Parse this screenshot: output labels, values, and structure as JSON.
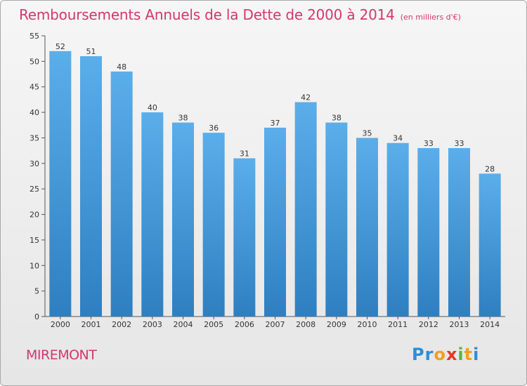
{
  "header": {
    "title": "Remboursements Annuels de la Dette de 2000 à 2014",
    "subtitle": "(en milliers d'€)"
  },
  "footer": {
    "commune": "MIREMONT",
    "logo_text": "Proxiti"
  },
  "colors": {
    "title": "#d4366e",
    "bar_top": "#5aaeea",
    "bar_bottom": "#2f7fc0"
  },
  "chart_data": {
    "type": "bar",
    "title": "Remboursements Annuels de la Dette de 2000 à 2014",
    "subtitle": "(en milliers d'€)",
    "categories": [
      "2000",
      "2001",
      "2002",
      "2003",
      "2004",
      "2005",
      "2006",
      "2007",
      "2008",
      "2009",
      "2010",
      "2011",
      "2012",
      "2013",
      "2014"
    ],
    "values": [
      52,
      51,
      48,
      40,
      38,
      36,
      31,
      37,
      42,
      38,
      35,
      34,
      33,
      33,
      28
    ],
    "xlabel": "",
    "ylabel": "",
    "ylim": [
      0,
      55
    ],
    "yticks": [
      0,
      5,
      10,
      15,
      20,
      25,
      30,
      35,
      40,
      45,
      50,
      55
    ],
    "grid": false,
    "data_labels": true
  }
}
